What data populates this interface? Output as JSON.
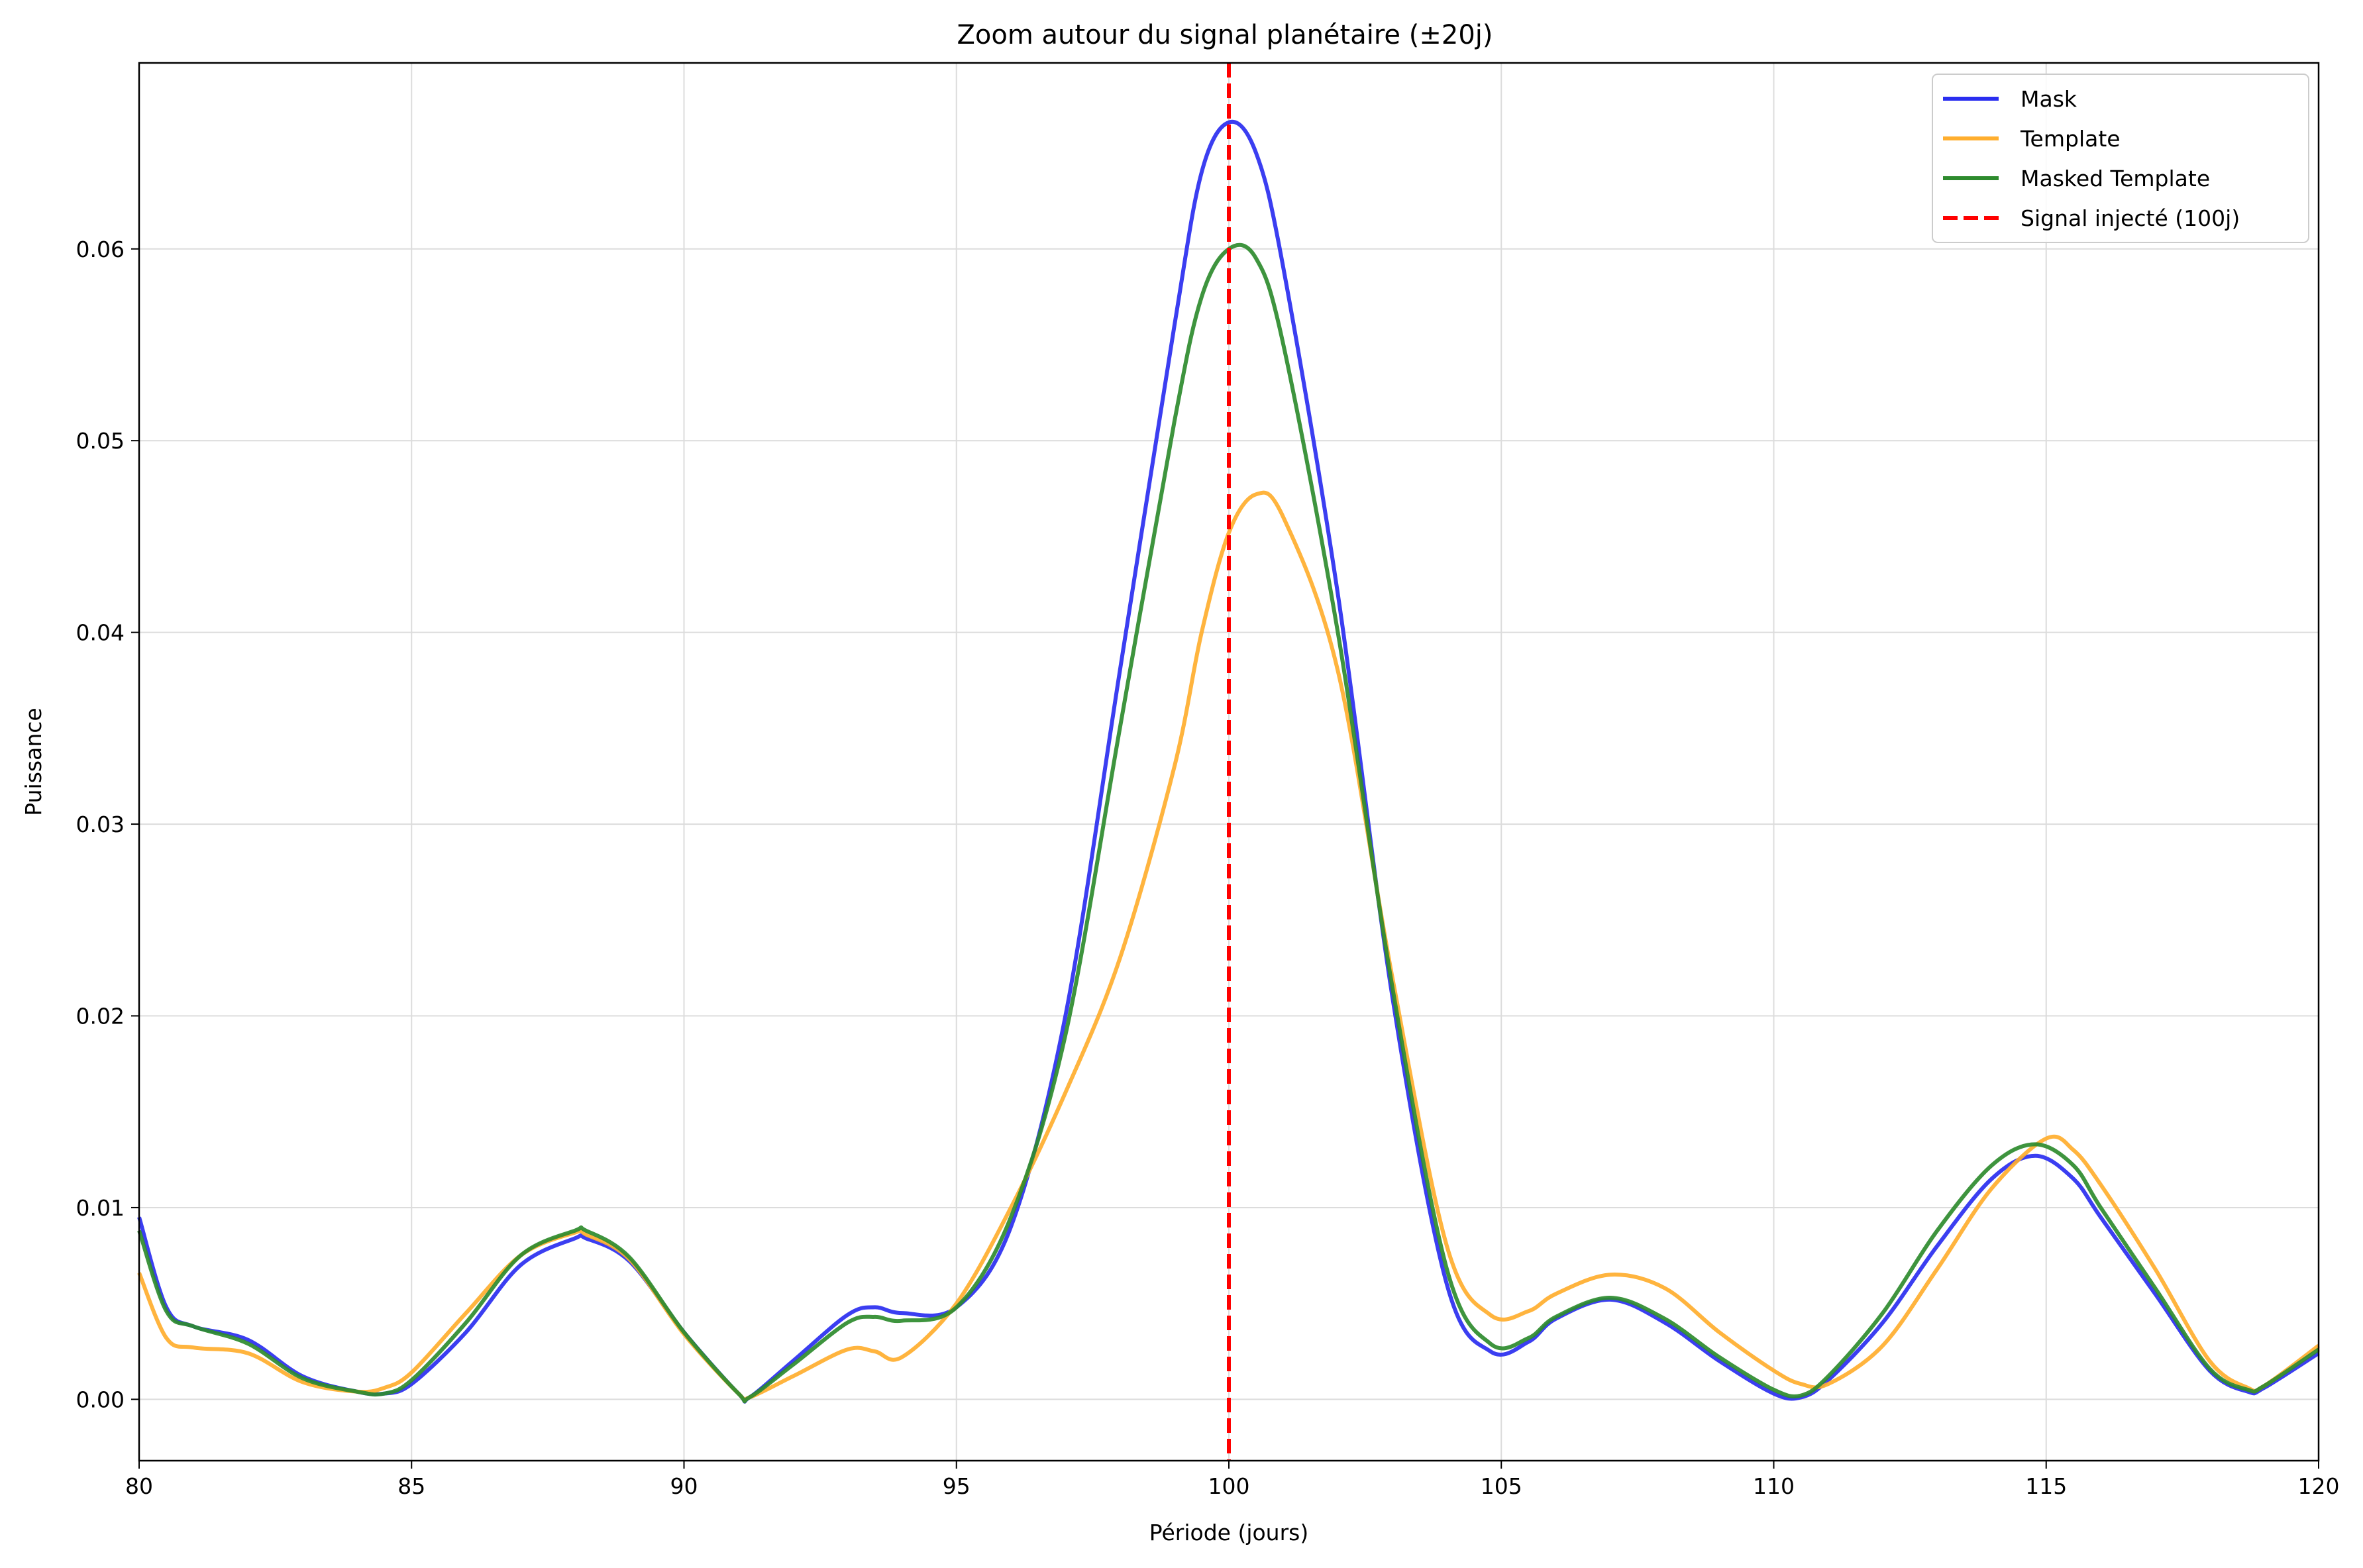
{
  "chart_data": {
    "type": "line",
    "title": "Zoom autour du signal planétaire (±20j)",
    "xlabel": "Période (jours)",
    "ylabel": "Puissance",
    "xlim": [
      80,
      120
    ],
    "ylim": [
      -0.0032,
      0.0697
    ],
    "xticks": [
      80,
      85,
      90,
      95,
      100,
      105,
      110,
      115,
      120
    ],
    "yticks": [
      0.0,
      0.01,
      0.02,
      0.03,
      0.04,
      0.05,
      0.06
    ],
    "ytick_labels": [
      "0.00",
      "0.01",
      "0.02",
      "0.03",
      "0.04",
      "0.05",
      "0.06"
    ],
    "grid": true,
    "legend_position": "top-right",
    "series": [
      {
        "name": "Mask",
        "color": "#2a2ef0",
        "x": [
          80,
          80.5,
          81,
          82,
          83,
          84,
          84.5,
          85,
          86,
          87,
          88,
          88.2,
          89,
          90,
          91,
          91.2,
          92,
          93,
          93.5,
          94,
          95,
          96,
          97,
          98,
          99,
          99.5,
          100,
          100.5,
          101,
          102,
          103,
          104,
          104.8,
          105.5,
          106,
          107,
          108,
          109,
          110,
          110.5,
          111,
          112,
          113,
          114,
          114.8,
          115.5,
          116,
          117,
          118,
          118.7,
          119,
          120
        ],
        "y": [
          0.0095,
          0.0048,
          0.0038,
          0.0031,
          0.0012,
          0.0004,
          0.0003,
          0.0008,
          0.0035,
          0.007,
          0.0084,
          0.0084,
          0.0072,
          0.0035,
          0.0003,
          0.0001,
          0.002,
          0.0044,
          0.0048,
          0.0045,
          0.0048,
          0.009,
          0.02,
          0.038,
          0.056,
          0.064,
          0.0666,
          0.065,
          0.059,
          0.042,
          0.021,
          0.006,
          0.0025,
          0.003,
          0.0042,
          0.0052,
          0.004,
          0.002,
          0.0003,
          0.0001,
          0.001,
          0.004,
          0.008,
          0.0115,
          0.0127,
          0.0115,
          0.0095,
          0.0055,
          0.0015,
          0.0004,
          0.0006,
          0.0024
        ]
      },
      {
        "name": "Template",
        "color": "#ffae2e",
        "x": [
          80,
          80.5,
          81,
          82,
          83,
          84,
          84.5,
          85,
          86,
          87,
          88,
          88.2,
          89,
          90,
          91,
          91.2,
          92,
          93,
          93.5,
          94,
          95,
          96,
          97,
          98,
          99,
          99.5,
          100,
          100.5,
          101,
          102,
          103,
          104,
          104.8,
          105.5,
          106,
          107,
          108,
          109,
          110,
          110.5,
          111,
          112,
          113,
          114,
          115,
          115.5,
          116,
          117,
          118,
          118.7,
          119,
          120
        ],
        "y": [
          0.0066,
          0.0032,
          0.0027,
          0.0024,
          0.0009,
          0.0004,
          0.0006,
          0.0014,
          0.0045,
          0.0075,
          0.0087,
          0.0086,
          0.0073,
          0.0034,
          0.0003,
          0.0001,
          0.0012,
          0.0026,
          0.0025,
          0.0022,
          0.005,
          0.01,
          0.016,
          0.023,
          0.033,
          0.04,
          0.0452,
          0.0472,
          0.046,
          0.038,
          0.022,
          0.008,
          0.0044,
          0.0046,
          0.0055,
          0.0065,
          0.0058,
          0.0035,
          0.0015,
          0.0008,
          0.0008,
          0.0028,
          0.0068,
          0.011,
          0.0136,
          0.013,
          0.0112,
          0.0068,
          0.002,
          0.0006,
          0.0007,
          0.0028
        ]
      },
      {
        "name": "Masked Template",
        "color": "#2e8b2e",
        "x": [
          80,
          80.5,
          81,
          82,
          83,
          84,
          84.5,
          85,
          86,
          87,
          88,
          88.2,
          89,
          90,
          91,
          91.2,
          92,
          93,
          93.5,
          94,
          95,
          96,
          97,
          98,
          99,
          99.5,
          100,
          100.5,
          101,
          102,
          103,
          104,
          104.8,
          105.5,
          106,
          107,
          108,
          109,
          110,
          110.5,
          111,
          112,
          113,
          114,
          114.8,
          115.5,
          116,
          117,
          118,
          118.7,
          119,
          120
        ],
        "y": [
          0.0088,
          0.0046,
          0.0038,
          0.0029,
          0.0011,
          0.0004,
          0.0003,
          0.001,
          0.004,
          0.0075,
          0.0088,
          0.0088,
          0.0074,
          0.0035,
          0.0003,
          0.0001,
          0.0018,
          0.004,
          0.0043,
          0.0041,
          0.0048,
          0.0095,
          0.019,
          0.035,
          0.051,
          0.0575,
          0.06,
          0.0595,
          0.055,
          0.04,
          0.0215,
          0.0068,
          0.0029,
          0.0032,
          0.0043,
          0.0053,
          0.0042,
          0.0022,
          0.0005,
          0.0002,
          0.0012,
          0.0045,
          0.0088,
          0.0122,
          0.0133,
          0.0122,
          0.01,
          0.0058,
          0.0016,
          0.0005,
          0.0007,
          0.0026
        ]
      }
    ],
    "vline": {
      "name": "Signal injecté (100j)",
      "x": 100,
      "color": "#ff0000",
      "style": "dashed"
    }
  }
}
